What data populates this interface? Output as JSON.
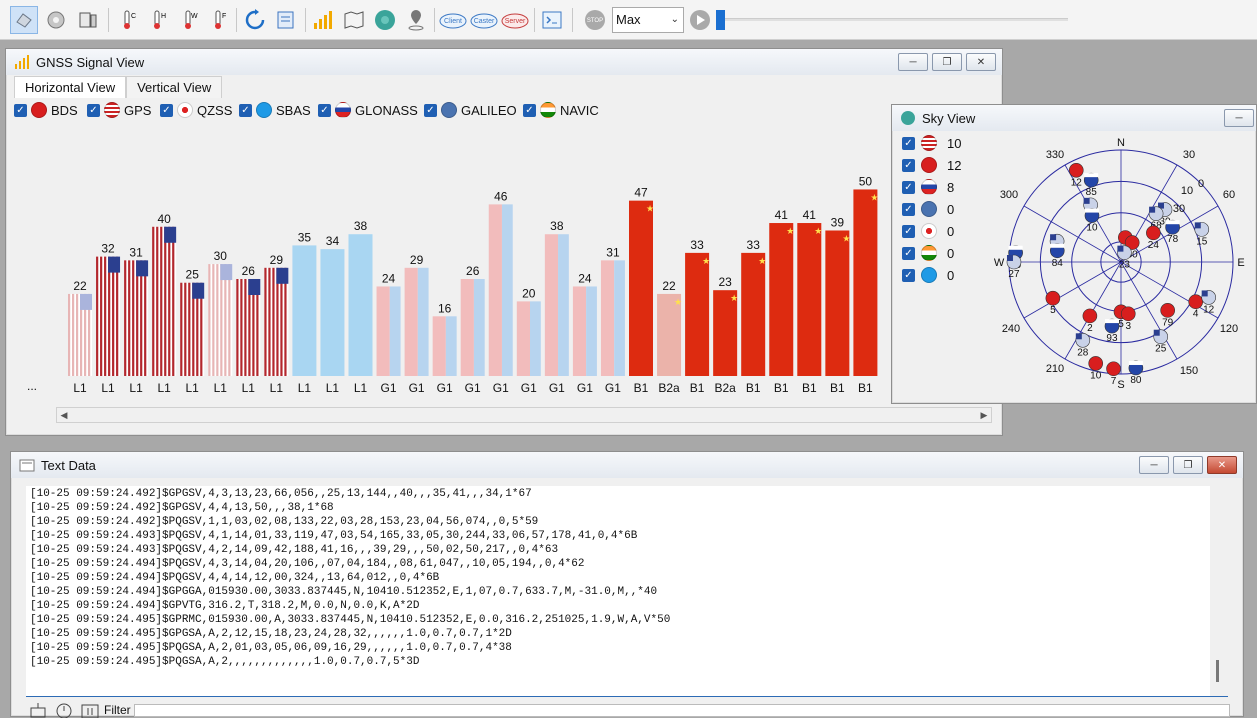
{
  "toolbar": {
    "icons": [
      "hand-icon",
      "gear-icon",
      "device-icon",
      "thermo-c-icon",
      "thermo-h-icon",
      "thermo-w-icon",
      "thermo-f-icon",
      "refresh-icon",
      "document-icon",
      "signal-bars-icon",
      "map-icon",
      "globe-icon",
      "location-pin-icon",
      "client-cloud-icon",
      "caster-cloud-icon",
      "server-cloud-icon",
      "terminal-icon",
      "stop-icon",
      "play-icon"
    ],
    "client_label": "Client",
    "caster_label": "Caster",
    "server_label": "Server",
    "stop_label": "STOP",
    "speed_value": "Max",
    "thermo_labels": [
      "C",
      "H",
      "W",
      "F"
    ]
  },
  "signal_view": {
    "title": "GNSS Signal View",
    "tabs": [
      "Horizontal View",
      "Vertical View"
    ],
    "legend": [
      {
        "name": "BDS",
        "color": "#d81e1e"
      },
      {
        "name": "GPS",
        "color": "#3a56b0"
      },
      {
        "name": "QZSS",
        "color": "#ffffff"
      },
      {
        "name": "SBAS",
        "color": "#1e9ae6"
      },
      {
        "name": "GLONASS",
        "color": "#e6e6e6"
      },
      {
        "name": "GALILEO",
        "color": "#4a73b0"
      },
      {
        "name": "NAVIC",
        "color": "#ff9933"
      }
    ],
    "more_label": "...",
    "chart_data": {
      "type": "bar",
      "categories": [
        "L1",
        "L1",
        "L1",
        "L1",
        "L1",
        "L1",
        "L1",
        "L1",
        "L1",
        "L1",
        "L1",
        "G1",
        "G1",
        "G1",
        "G1",
        "G1",
        "G1",
        "G1",
        "G1",
        "G1",
        "B1",
        "B2a",
        "B1",
        "B2a",
        "B1",
        "B1",
        "B1",
        "B1",
        "B1"
      ],
      "values": [
        22,
        32,
        31,
        40,
        25,
        30,
        26,
        29,
        35,
        34,
        38,
        24,
        29,
        16,
        26,
        46,
        20,
        38,
        24,
        31,
        47,
        22,
        33,
        23,
        33,
        41,
        41,
        39,
        50
      ],
      "systems": [
        "GPS",
        "GPS",
        "GPS",
        "GPS",
        "GPS",
        "GPS",
        "GPS",
        "GPS",
        "SBAS",
        "SBAS",
        "SBAS",
        "GLONASS",
        "GLONASS",
        "GLONASS",
        "GLONASS",
        "GLONASS",
        "GLONASS",
        "GLONASS",
        "GLONASS",
        "GLONASS",
        "BDS",
        "BDS",
        "BDS",
        "BDS",
        "BDS",
        "BDS",
        "BDS",
        "BDS",
        "BDS"
      ],
      "faded": [
        true,
        false,
        false,
        false,
        false,
        true,
        false,
        false,
        false,
        false,
        false,
        false,
        false,
        false,
        false,
        false,
        false,
        false,
        false,
        false,
        false,
        true,
        false,
        false,
        false,
        false,
        false,
        false,
        false
      ],
      "ylim": [
        0,
        55
      ],
      "colors": {
        "GPS": "#b3272d",
        "GPS_faded": "#e7b5b5",
        "SBAS": "#a9d6f2",
        "GLONASS_left": "#f2bcbc",
        "GLONASS_right": "#b7d4ef",
        "BDS": "#dd2b10",
        "BDS_faded": "#ebb3aa"
      }
    }
  },
  "sky_view": {
    "title": "Sky View",
    "rows": [
      {
        "flag": "usa",
        "count": "10"
      },
      {
        "flag": "china",
        "count": "12"
      },
      {
        "flag": "russia",
        "count": "8"
      },
      {
        "flag": "galileo",
        "count": "0"
      },
      {
        "flag": "japan",
        "count": "0"
      },
      {
        "flag": "india",
        "count": "0"
      },
      {
        "flag": "sbas",
        "count": "0"
      }
    ],
    "compass": {
      "n": "N",
      "e": "E",
      "s": "S",
      "w": "W"
    },
    "azimuth_labels": [
      "330",
      "30",
      "300",
      "60",
      "240",
      "120",
      "210",
      "150"
    ],
    "elevation_labels": [
      "0",
      "10",
      "30"
    ],
    "satellites": [
      {
        "id": "12",
        "az": -26,
        "el": 8,
        "sys": "china"
      },
      {
        "id": "85",
        "az": -20,
        "el": 20,
        "sys": "russia"
      },
      {
        "id": "69",
        "az": -28,
        "el": 38,
        "sys": "usa"
      },
      {
        "id": "10",
        "az": -32,
        "el": 46,
        "sys": "russia"
      },
      {
        "id": "30",
        "az": 40,
        "el": 35,
        "sys": "usa"
      },
      {
        "id": "68",
        "az": 36,
        "el": 42,
        "sys": "usa"
      },
      {
        "id": "24",
        "az": 48,
        "el": 55,
        "sys": "china"
      },
      {
        "id": "78",
        "az": 56,
        "el": 40,
        "sys": "russia"
      },
      {
        "id": "15",
        "az": 68,
        "el": 20,
        "sys": "usa"
      },
      {
        "id": "13",
        "az": 10,
        "el": 70,
        "sys": "china"
      },
      {
        "id": "60",
        "az": 30,
        "el": 72,
        "sys": "china"
      },
      {
        "id": "23",
        "az": 20,
        "el": 82,
        "sys": "usa"
      },
      {
        "id": "50",
        "az": -85,
        "el": 5,
        "sys": "russia"
      },
      {
        "id": "27",
        "az": -90,
        "el": 4,
        "sys": "usa"
      },
      {
        "id": "31",
        "az": -72,
        "el": 36,
        "sys": "usa"
      },
      {
        "id": "84",
        "az": -80,
        "el": 38,
        "sys": "russia"
      },
      {
        "id": "5",
        "az": -118,
        "el": 28,
        "sys": "china"
      },
      {
        "id": "2",
        "az": -150,
        "el": 40,
        "sys": "china"
      },
      {
        "id": "5",
        "az": 180,
        "el": 50,
        "sys": "china"
      },
      {
        "id": "3",
        "az": 172,
        "el": 48,
        "sys": "china"
      },
      {
        "id": "93",
        "az": 188,
        "el": 38,
        "sys": "russia"
      },
      {
        "id": "79",
        "az": 136,
        "el": 36,
        "sys": "china"
      },
      {
        "id": "4",
        "az": 118,
        "el": 22,
        "sys": "china"
      },
      {
        "id": "12",
        "az": 112,
        "el": 14,
        "sys": "usa"
      },
      {
        "id": "25",
        "az": 152,
        "el": 22,
        "sys": "usa"
      },
      {
        "id": "28",
        "az": -154,
        "el": 20,
        "sys": "usa"
      },
      {
        "id": "10",
        "az": -166,
        "el": 6,
        "sys": "china"
      },
      {
        "id": "7",
        "az": -176,
        "el": 4,
        "sys": "china"
      },
      {
        "id": "80",
        "az": 172,
        "el": 4,
        "sys": "russia"
      }
    ]
  },
  "text_data": {
    "title": "Text Data",
    "lines": [
      "[10-25 09:59:24.492]$GPGSV,4,3,13,23,66,056,,25,13,144,,40,,,35,41,,,34,1*67",
      "[10-25 09:59:24.492]$GPGSV,4,4,13,50,,,38,1*68",
      "[10-25 09:59:24.492]$PQGSV,1,1,03,02,08,133,22,03,28,153,23,04,56,074,,0,5*59",
      "[10-25 09:59:24.493]$PQGSV,4,1,14,01,33,119,47,03,54,165,33,05,30,244,33,06,57,178,41,0,4*6B",
      "[10-25 09:59:24.493]$PQGSV,4,2,14,09,42,188,41,16,,,39,29,,,50,02,50,217,,0,4*63",
      "[10-25 09:59:24.494]$PQGSV,4,3,14,04,20,106,,07,04,184,,08,61,047,,10,05,194,,0,4*62",
      "[10-25 09:59:24.494]$PQGSV,4,4,14,12,00,324,,13,64,012,,0,4*6B",
      "[10-25 09:59:24.494]$GPGGA,015930.00,3033.837445,N,10410.512352,E,1,07,0.7,633.7,M,-31.0,M,,*40",
      "[10-25 09:59:24.494]$GPVTG,316.2,T,318.2,M,0.0,N,0.0,K,A*2D",
      "[10-25 09:59:24.495]$GPRMC,015930.00,A,3033.837445,N,10410.512352,E,0.0,316.2,251025,1.9,W,A,V*50",
      "[10-25 09:59:24.495]$GPGSA,A,2,12,15,18,23,24,28,32,,,,,,1.0,0.7,0.7,1*2D",
      "[10-25 09:59:24.495]$PQGSA,A,2,01,03,05,06,09,16,29,,,,,,1.0,0.7,0.7,4*38",
      "[10-25 09:59:24.495]$PQGSA,A,2,,,,,,,,,,,,,1.0,0.7,0.7,5*3D"
    ],
    "filter_label": "Filter"
  }
}
